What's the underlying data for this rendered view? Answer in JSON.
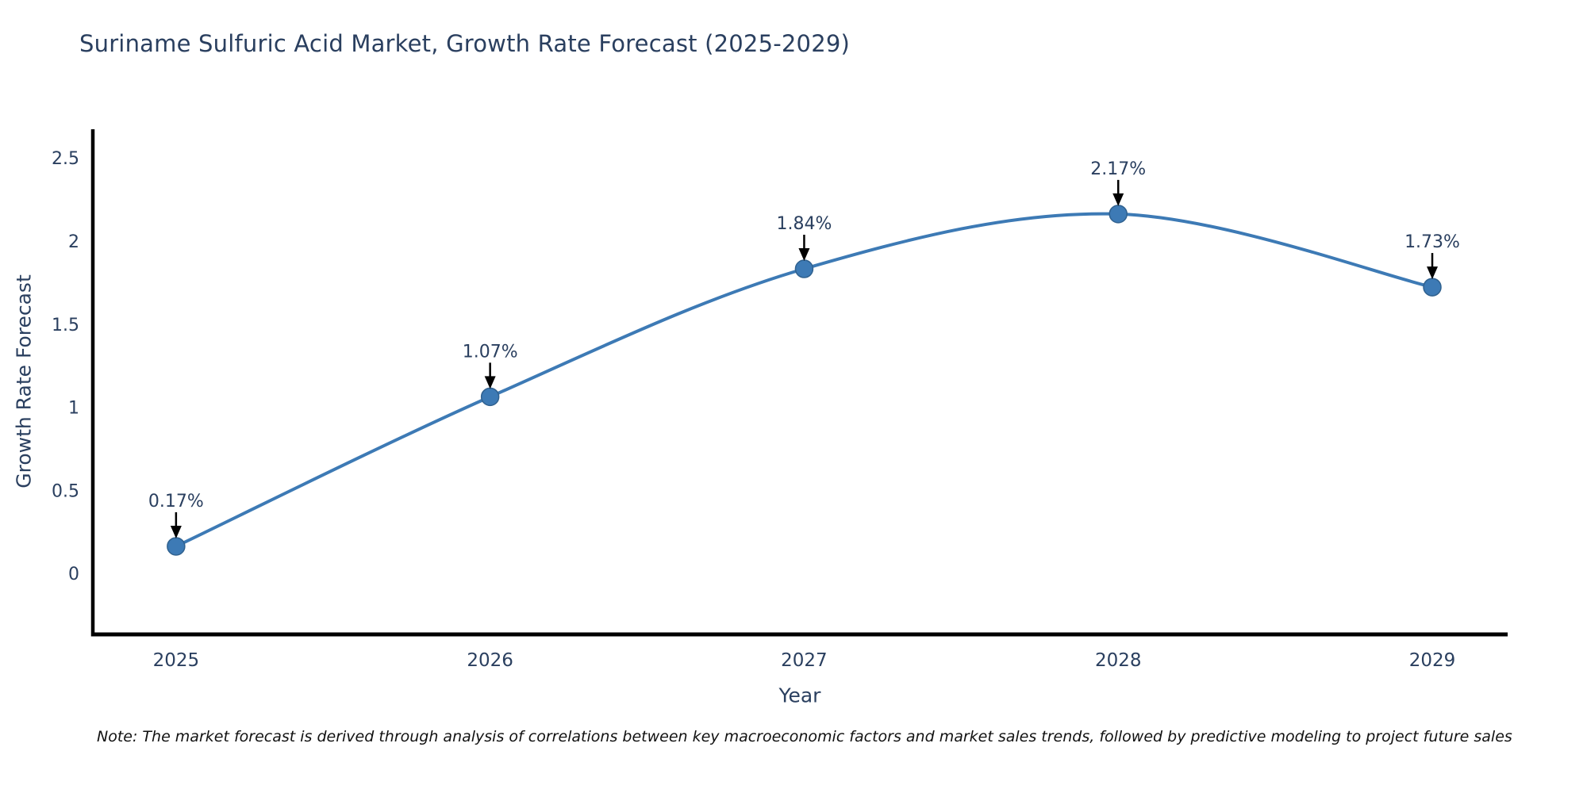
{
  "note": "Note: The market forecast is derived through analysis of correlations between key macroeconomic factors and market sales trends, followed by predictive modeling to project future sales",
  "chart_data": {
    "type": "line",
    "title": "Suriname Sulfuric Acid Market, Growth Rate Forecast (2025-2029)",
    "xlabel": "Year",
    "ylabel": "Growth Rate Forecast",
    "x": [
      2025,
      2026,
      2027,
      2028,
      2029
    ],
    "values": [
      0.17,
      1.07,
      1.84,
      2.17,
      1.73
    ],
    "point_labels": [
      "0.17%",
      "1.07%",
      "1.84%",
      "2.17%",
      "1.73%"
    ],
    "y_ticks": [
      0,
      0.5,
      1,
      1.5,
      2,
      2.5
    ],
    "ylim": [
      -0.36,
      2.68
    ],
    "xlim": [
      2024.73,
      2029.24
    ],
    "grid": false,
    "legend": "none",
    "smooth": true,
    "line_color": "#3d7ab5",
    "marker_color": "#3d7ab5",
    "marker_edge_color": "#30618f",
    "axis_color": "#000000",
    "text_color": "#2a3f5f",
    "annotation_arrow_color": "#000000"
  }
}
